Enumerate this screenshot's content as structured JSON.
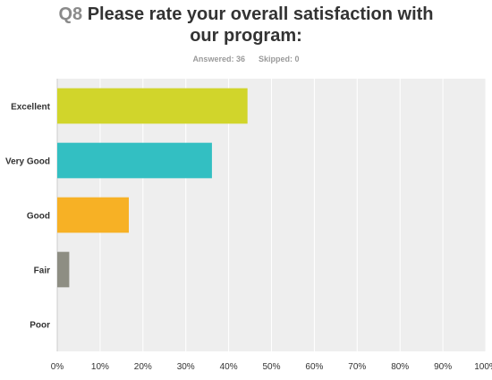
{
  "question": {
    "number": "Q8",
    "title_line1": "Please rate your overall satisfaction with",
    "title_line2": "our program:"
  },
  "stats": {
    "answered_label": "Answered:",
    "answered_value": "36",
    "skipped_label": "Skipped:",
    "skipped_value": "0"
  },
  "chart_data": {
    "type": "bar",
    "orientation": "horizontal",
    "categories": [
      "Excellent",
      "Very Good",
      "Good",
      "Fair",
      "Poor"
    ],
    "values": [
      44.4,
      36.1,
      16.7,
      2.8,
      0
    ],
    "colors": [
      "#d1d52b",
      "#33bfc2",
      "#f7b125",
      "#8e8e83",
      "#6e5aa0"
    ],
    "xlim": [
      0,
      100
    ],
    "xticks": [
      "0%",
      "10%",
      "20%",
      "30%",
      "40%",
      "50%",
      "60%",
      "70%",
      "80%",
      "90%",
      "100%"
    ],
    "grid": true,
    "plot_background": "#eeeeee",
    "gridline_color": "#ffffff"
  }
}
